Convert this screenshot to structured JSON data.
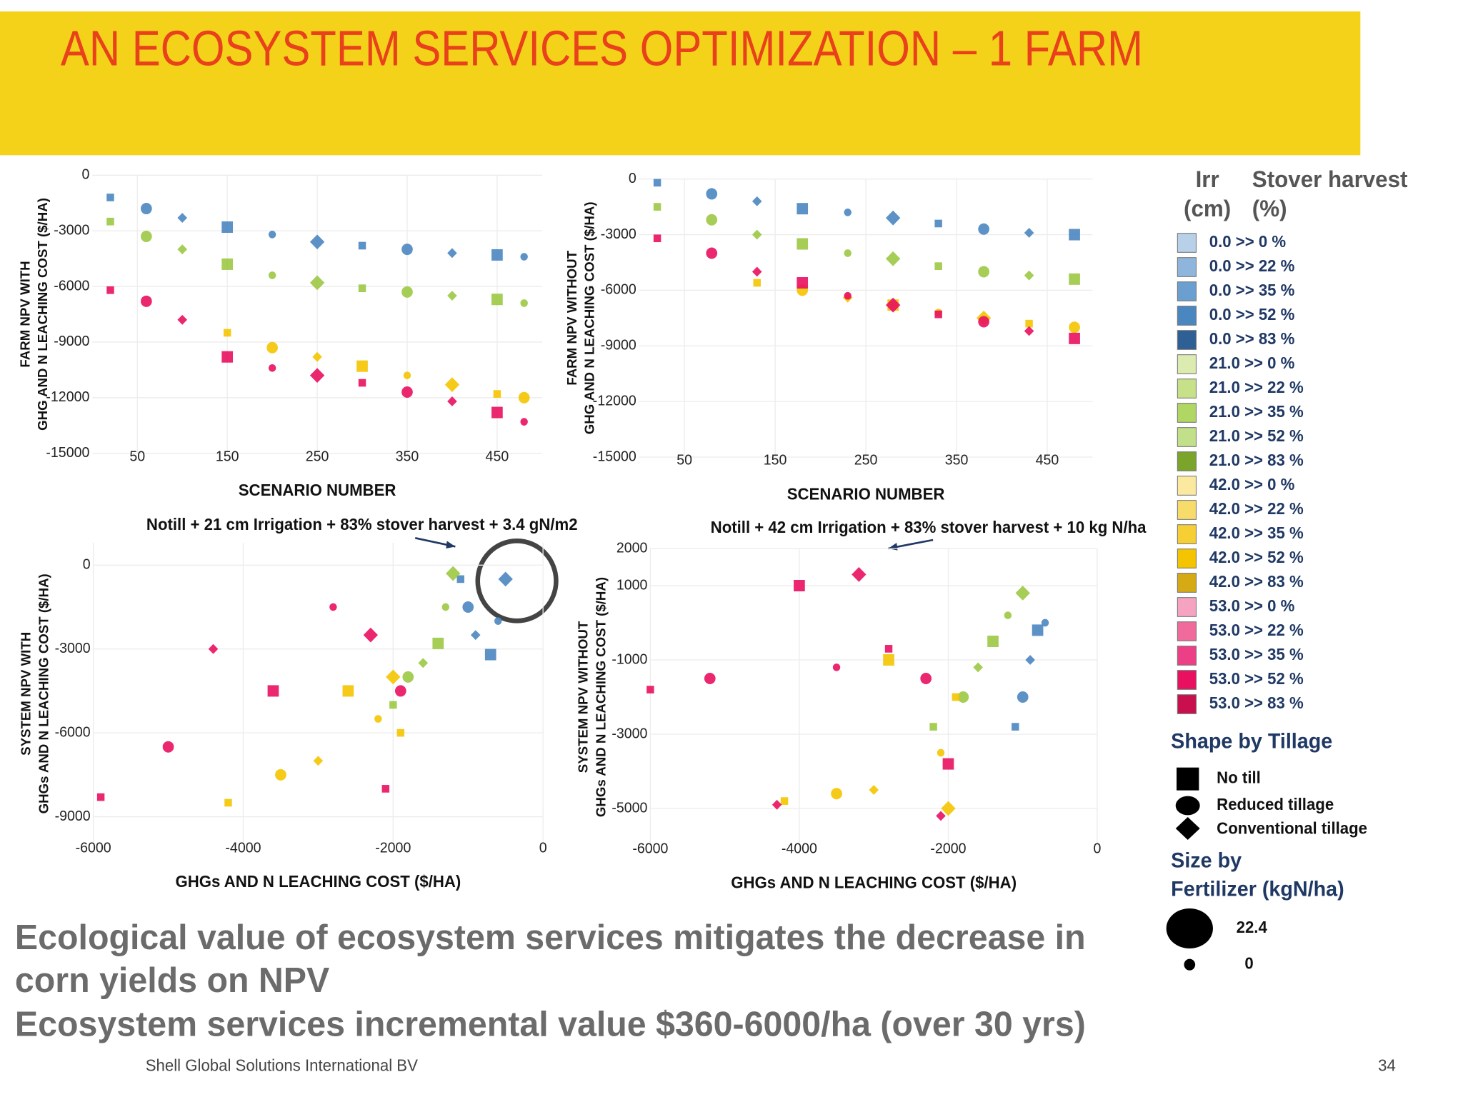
{
  "header": {
    "title": "AN ECOSYSTEM SERVICES OPTIMIZATION – 1 FARM"
  },
  "chart_data": [
    {
      "type": "scatter",
      "ylabel": [
        "FARM NPV WITH",
        "GHG AND N LEACHING COST ($/HA)"
      ],
      "xlabel": "SCENARIO NUMBER",
      "xlim": [
        0,
        500
      ],
      "ylim": [
        -15000,
        0
      ],
      "xticks": [
        50,
        150,
        250,
        350,
        450
      ],
      "yticks": [
        0,
        -3000,
        -6000,
        -9000,
        -12000,
        -15000
      ],
      "grid": true,
      "series": [
        {
          "color": "#4a86c0",
          "x": [
            20,
            60,
            100,
            150,
            200,
            250,
            300,
            350,
            400,
            450,
            480
          ],
          "y": [
            -1200,
            -1800,
            -2300,
            -2800,
            -3200,
            -3600,
            -3800,
            -4000,
            -4200,
            -4300,
            -4400
          ]
        },
        {
          "color": "#9cc843",
          "x": [
            20,
            60,
            100,
            150,
            200,
            250,
            300,
            350,
            400,
            450,
            480
          ],
          "y": [
            -2500,
            -3300,
            -4000,
            -4800,
            -5400,
            -5800,
            -6100,
            -6300,
            -6500,
            -6700,
            -6900
          ]
        },
        {
          "color": "#f4c400",
          "x": [
            150,
            200,
            250,
            300,
            350,
            400,
            450,
            480
          ],
          "y": [
            -8500,
            -9300,
            -9800,
            -10300,
            -10800,
            -11300,
            -11800,
            -12000
          ]
        },
        {
          "color": "#e8105f",
          "x": [
            20,
            60,
            100,
            150,
            200,
            250,
            300,
            350,
            400,
            450,
            480
          ],
          "y": [
            -6200,
            -6800,
            -7800,
            -9800,
            -10400,
            -10800,
            -11200,
            -11700,
            -12200,
            -12800,
            -13300
          ]
        }
      ]
    },
    {
      "type": "scatter",
      "ylabel": [
        "FARM NPV WITHOUT",
        "GHG AND N LEACHING COST ($/HA)"
      ],
      "xlabel": "SCENARIO NUMBER",
      "xlim": [
        0,
        500
      ],
      "ylim": [
        -15000,
        0
      ],
      "xticks": [
        50,
        150,
        250,
        350,
        450
      ],
      "yticks": [
        0,
        -3000,
        -6000,
        -9000,
        -12000,
        -15000
      ],
      "grid": true,
      "series": [
        {
          "color": "#4a86c0",
          "x": [
            20,
            80,
            130,
            180,
            230,
            280,
            330,
            380,
            430,
            480
          ],
          "y": [
            -200,
            -800,
            -1200,
            -1600,
            -1800,
            -2100,
            -2400,
            -2700,
            -2900,
            -3000
          ]
        },
        {
          "color": "#9cc843",
          "x": [
            20,
            80,
            130,
            180,
            230,
            280,
            330,
            380,
            430,
            480
          ],
          "y": [
            -1500,
            -2200,
            -3000,
            -3500,
            -4000,
            -4300,
            -4700,
            -5000,
            -5200,
            -5400
          ]
        },
        {
          "color": "#f4c400",
          "x": [
            130,
            180,
            230,
            280,
            330,
            380,
            430,
            480
          ],
          "y": [
            -5600,
            -6000,
            -6400,
            -6800,
            -7200,
            -7500,
            -7800,
            -8000
          ]
        },
        {
          "color": "#e8105f",
          "x": [
            20,
            80,
            130,
            180,
            230,
            280,
            330,
            380,
            430,
            480
          ],
          "y": [
            -3200,
            -4000,
            -5000,
            -5600,
            -6300,
            -6800,
            -7300,
            -7700,
            -8200,
            -8600
          ]
        }
      ]
    },
    {
      "type": "scatter",
      "ylabel": [
        "SYSTEM NPV WITH",
        "GHGs AND N LEACHING COST ($/HA)"
      ],
      "xlabel": "GHGs AND N LEACHING COST ($/HA)",
      "annotation": "Notill + 21 cm Irrigation + 83% stover harvest + 3.4 gN/m2",
      "xlim": [
        -6000,
        0
      ],
      "ylim": [
        -10000,
        800
      ],
      "xticks": [
        -6000,
        -4000,
        -2000,
        0
      ],
      "yticks": [
        0,
        -3000,
        -6000,
        -9000
      ],
      "grid": true,
      "series": [
        {
          "color": "#4a86c0",
          "x": [
            -1100,
            -1000,
            -900,
            -700,
            -600,
            -500
          ],
          "y": [
            -500,
            -1500,
            -2500,
            -3200,
            -2000,
            -500
          ]
        },
        {
          "color": "#9cc843",
          "x": [
            -2000,
            -1800,
            -1600,
            -1400,
            -1300,
            -1200
          ],
          "y": [
            -5000,
            -4000,
            -3500,
            -2800,
            -1500,
            -300
          ]
        },
        {
          "color": "#f4c400",
          "x": [
            -4200,
            -3500,
            -3000,
            -2600,
            -2200,
            -2000,
            -1900
          ],
          "y": [
            -8500,
            -7500,
            -7000,
            -4500,
            -5500,
            -4000,
            -6000
          ]
        },
        {
          "color": "#e8105f",
          "x": [
            -5900,
            -5000,
            -4400,
            -3600,
            -2800,
            -2300,
            -2100,
            -1900
          ],
          "y": [
            -8300,
            -6500,
            -3000,
            -4500,
            -1500,
            -2500,
            -8000,
            -4500
          ]
        }
      ]
    },
    {
      "type": "scatter",
      "ylabel": [
        "SYSTEM NPV WITHOUT",
        "GHGs AND N LEACHING COST ($/HA)"
      ],
      "xlabel": "GHGs AND N LEACHING COST ($/HA)",
      "annotation": "Notill + 42 cm Irrigation + 83% stover harvest + 10 kg N/ha",
      "xlim": [
        -6000,
        0
      ],
      "ylim": [
        -6000,
        2000
      ],
      "xticks": [
        -6000,
        -4000,
        -2000,
        0
      ],
      "yticks": [
        2000,
        1000,
        -1000,
        -3000,
        -5000
      ],
      "grid": true,
      "series": [
        {
          "color": "#4a86c0",
          "x": [
            -1100,
            -1000,
            -900,
            -800,
            -700
          ],
          "y": [
            -2800,
            -2000,
            -1000,
            -200,
            0
          ]
        },
        {
          "color": "#9cc843",
          "x": [
            -2200,
            -1800,
            -1600,
            -1400,
            -1200,
            -1000
          ],
          "y": [
            -2800,
            -2000,
            -1200,
            -500,
            200,
            800
          ]
        },
        {
          "color": "#f4c400",
          "x": [
            -4200,
            -3500,
            -3000,
            -2800,
            -2100,
            -2000,
            -1900
          ],
          "y": [
            -4800,
            -4600,
            -4500,
            -1000,
            -3500,
            -5000,
            -2000
          ]
        },
        {
          "color": "#e8105f",
          "x": [
            -6000,
            -5200,
            -4300,
            -4000,
            -3500,
            -3200,
            -2800,
            -2300,
            -2100,
            -2000
          ],
          "y": [
            -1800,
            -1500,
            -4900,
            1000,
            -1200,
            1300,
            -700,
            -1500,
            -5200,
            -3800
          ]
        }
      ]
    }
  ],
  "legend": {
    "irr_header": [
      "Irr",
      "(cm)"
    ],
    "stover_header": [
      "Stover harvest",
      "(%)"
    ],
    "items": [
      {
        "label": "0.0 >> 0 %",
        "color": "#b8d0e8"
      },
      {
        "label": "0.0 >> 22 %",
        "color": "#8fb5dc"
      },
      {
        "label": "0.0 >> 35 %",
        "color": "#6a9fd0"
      },
      {
        "label": "0.0 >> 52 %",
        "color": "#4a86c0"
      },
      {
        "label": "0.0 >> 83 %",
        "color": "#2e5f95"
      },
      {
        "label": "21.0 >> 0 %",
        "color": "#dcebb0"
      },
      {
        "label": "21.0 >> 22 %",
        "color": "#c6e187"
      },
      {
        "label": "21.0 >> 35 %",
        "color": "#b0d663"
      },
      {
        "label": "21.0 >> 52 %",
        "color": "#c2e089"
      },
      {
        "label": "21.0 >> 83 %",
        "color": "#7ba42a"
      },
      {
        "label": "42.0 >> 0 %",
        "color": "#fbe9a0"
      },
      {
        "label": "42.0 >> 22 %",
        "color": "#f8dc6a"
      },
      {
        "label": "42.0 >> 35 %",
        "color": "#f6cf35"
      },
      {
        "label": "42.0 >> 52 %",
        "color": "#f4c400"
      },
      {
        "label": "42.0 >> 83 %",
        "color": "#d6aa15"
      },
      {
        "label": "53.0 >> 0 %",
        "color": "#f5a3c0"
      },
      {
        "label": "53.0 >> 22 %",
        "color": "#f06a9c"
      },
      {
        "label": "53.0 >> 35 %",
        "color": "#ec3f86"
      },
      {
        "label": "53.0 >> 52 %",
        "color": "#e8105f"
      },
      {
        "label": "53.0 >> 83 %",
        "color": "#c8104f"
      }
    ],
    "shape_title": "Shape by Tillage",
    "shapes": [
      "No till",
      "Reduced tillage",
      "Conventional tillage"
    ],
    "size_title": [
      "Size by",
      "Fertilizer (kgN/ha)"
    ],
    "sizes": [
      "22.4",
      "0"
    ]
  },
  "body": {
    "lines": [
      "Ecological value of ecosystem services mitigates the decrease in",
      "corn yields on NPV",
      "Ecosystem services incremental value $360-6000/ha (over 30 yrs)"
    ]
  },
  "footer": {
    "source": "Shell Global Solutions International BV",
    "page": "34"
  }
}
